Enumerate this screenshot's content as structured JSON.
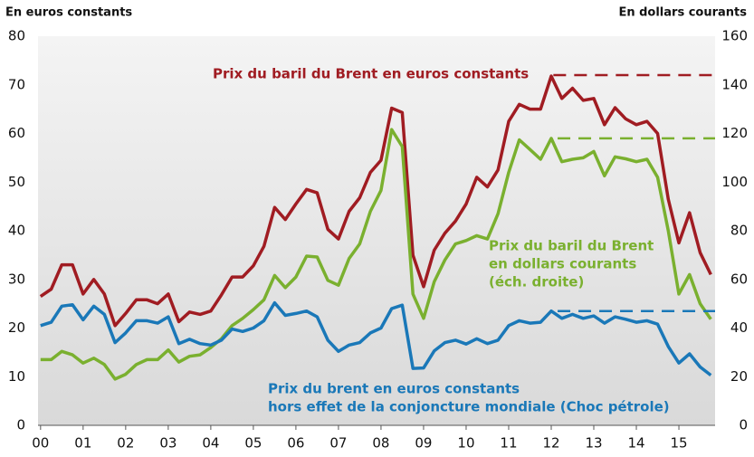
{
  "chart_data": {
    "type": "line",
    "y_axis_label": "En euros constants",
    "y2_axis_label": "En dollars courants",
    "x": [
      0,
      0.25,
      0.5,
      0.75,
      1,
      1.25,
      1.5,
      1.75,
      2,
      2.25,
      2.5,
      2.75,
      3,
      3.25,
      3.5,
      3.75,
      4,
      4.25,
      4.5,
      4.75,
      5,
      5.25,
      5.5,
      5.75,
      6,
      6.25,
      6.5,
      6.75,
      7,
      7.25,
      7.5,
      7.75,
      8,
      8.25,
      8.5,
      8.75,
      9,
      9.25,
      9.5,
      9.75,
      10,
      10.25,
      10.5,
      10.75,
      11,
      11.25,
      11.5,
      11.75,
      12,
      12.25,
      12.5,
      12.75,
      13,
      13.25,
      13.5,
      13.75,
      14,
      14.25,
      14.5,
      14.75,
      15,
      15.25,
      15.5,
      15.75
    ],
    "xlim": [
      -0.06,
      15.85
    ],
    "xticks": [
      {
        "value": 0,
        "label": "00"
      },
      {
        "value": 1,
        "label": "01"
      },
      {
        "value": 2,
        "label": "02"
      },
      {
        "value": 3,
        "label": "03"
      },
      {
        "value": 4,
        "label": "04"
      },
      {
        "value": 5,
        "label": "05"
      },
      {
        "value": 6,
        "label": "06"
      },
      {
        "value": 7,
        "label": "07"
      },
      {
        "value": 8,
        "label": "08"
      },
      {
        "value": 9,
        "label": "09"
      },
      10,
      11,
      12,
      13,
      14,
      15
    ],
    "ylim": [
      0,
      80
    ],
    "yticks": [
      0,
      10,
      20,
      30,
      40,
      50,
      60,
      70,
      80
    ],
    "y2lim": [
      0,
      160
    ],
    "y2ticks": [
      0,
      20,
      40,
      60,
      80,
      100,
      120,
      140,
      160
    ],
    "series": [
      {
        "name": "Prix du baril du Brent en euros constants",
        "color": "#a01c22",
        "values": [
          26.5,
          28,
          33,
          33,
          27,
          30,
          27,
          20.5,
          23,
          25.8,
          25.8,
          25,
          27,
          21.3,
          23.3,
          22.8,
          23.5,
          26.8,
          30.5,
          30.5,
          32.8,
          36.8,
          44.8,
          42.3,
          45.5,
          48.5,
          47.8,
          40.3,
          38.3,
          44,
          46.8,
          52,
          54.5,
          65.2,
          64.3,
          35,
          28.5,
          36,
          39.5,
          42,
          45.5,
          51,
          49,
          52.5,
          62.5,
          66,
          65,
          65,
          71.8,
          67.2,
          69.3,
          66.8,
          67.2,
          61.8,
          65.3,
          63,
          61.8,
          62.5,
          60,
          46.5,
          37.5,
          43.7,
          35.5,
          31
        ]
      },
      {
        "name": "Prix du baril du Brent en dollars courants (éch. droite)",
        "color": "#7ab02f",
        "axis": "y2",
        "values": [
          27,
          27,
          30.4,
          29,
          25.6,
          27.6,
          25,
          19,
          21,
          25,
          27,
          27,
          31,
          26,
          28.4,
          29,
          32,
          35.6,
          41,
          44,
          47.6,
          51.6,
          61.6,
          56.6,
          61,
          69.6,
          69.2,
          59.6,
          57.6,
          68.6,
          74.6,
          88,
          96.6,
          121.6,
          114.6,
          54,
          44,
          59,
          68,
          74.6,
          76,
          78,
          76.6,
          87,
          104,
          117.4,
          113.4,
          109.4,
          118,
          108.4,
          109.4,
          110,
          112.6,
          102.6,
          110.4,
          109.6,
          108.4,
          109.4,
          102,
          80,
          54,
          62,
          50,
          43.6
        ]
      },
      {
        "name": "Prix du brent en euros constants hors effet de la conjoncture mondiale (Choc pétrole)",
        "color": "#1a78b8",
        "values": [
          20.5,
          21.2,
          24.5,
          24.8,
          21.7,
          24.5,
          22.8,
          17,
          19,
          21.5,
          21.5,
          21,
          22.3,
          16.8,
          17.7,
          16.8,
          16.5,
          17.5,
          19.8,
          19.3,
          20,
          21.5,
          25.2,
          22.6,
          23,
          23.5,
          22.3,
          17.5,
          15.2,
          16.5,
          17,
          19,
          20,
          24,
          24.7,
          11.7,
          11.8,
          15.3,
          17,
          17.5,
          16.7,
          17.8,
          16.8,
          17.5,
          20.5,
          21.5,
          21,
          21.2,
          23.5,
          22,
          22.8,
          22,
          22.5,
          21,
          22.3,
          21.8,
          21.2,
          21.5,
          20.8,
          16.2,
          12.8,
          14.7,
          12,
          10.3
        ]
      }
    ],
    "annotations": [
      {
        "lines": [
          "Prix du baril du Brent en euros constants"
        ],
        "series": 0
      },
      {
        "lines": [
          "Prix du baril du Brent",
          "en dollars courants",
          "(éch. droite)"
        ],
        "series": 1
      },
      {
        "lines": [
          "Prix du brent en euros constants",
          "hors effet de la conjoncture mondiale (Choc pétrole)"
        ],
        "series": 2
      }
    ],
    "reference_lines": [
      {
        "value": 72,
        "from": 12.05,
        "series": 0
      },
      {
        "value": 118,
        "from": 12.15,
        "series": 1,
        "axis": "y2"
      },
      {
        "value": 23.5,
        "from": 12.15,
        "series": 2
      }
    ]
  }
}
